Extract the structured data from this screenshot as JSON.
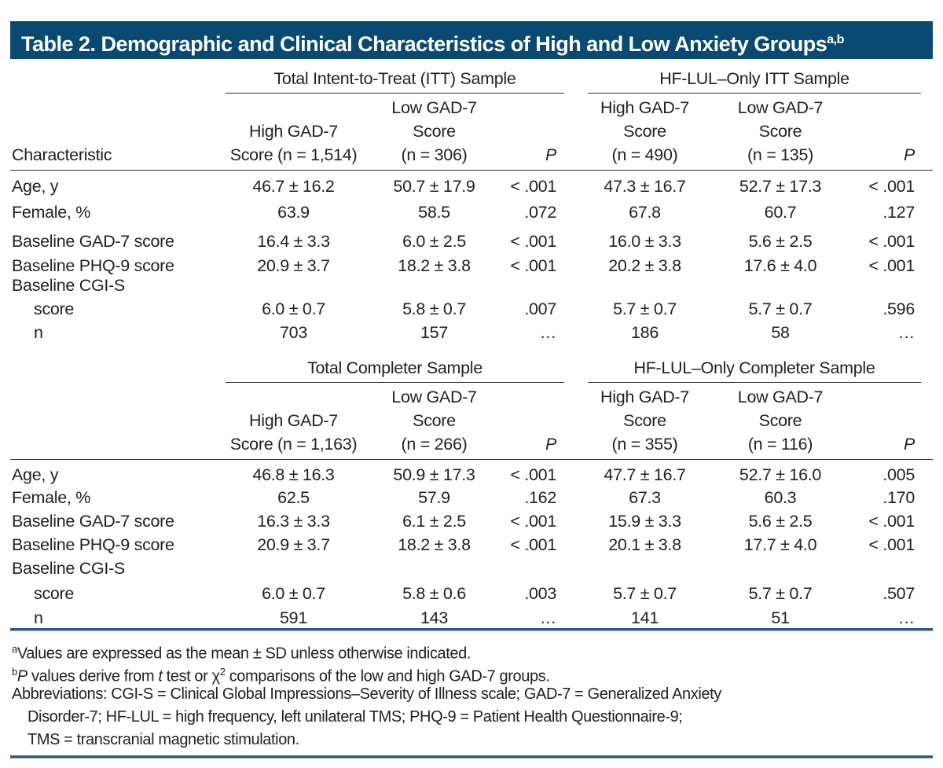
{
  "title": {
    "text": "Table 2. Demographic and Clinical Characteristics of High and Low Anxiety Groups",
    "sup": "a,b"
  },
  "colors": {
    "title_bg": "#0a4a72",
    "rule_blue": "#2a5a8a"
  },
  "sections": [
    {
      "spanners": [
        "Total Intent-to-Treat (ITT) Sample",
        "HF-LUL–Only ITT Sample"
      ],
      "headers": [
        [
          "Characteristic"
        ],
        [
          "High GAD-7",
          "Score (n = 1,514)"
        ],
        [
          "Low GAD-7",
          "Score",
          "(n = 306)"
        ],
        [
          "P"
        ],
        [
          "High GAD-7",
          "Score",
          "(n = 490)"
        ],
        [
          "Low GAD-7",
          "Score",
          "(n = 135)"
        ],
        [
          "P"
        ]
      ],
      "rows": [
        [
          "Age, y",
          "46.7 ± 16.2",
          "50.7 ± 17.9",
          "< .001",
          "47.3 ± 16.7",
          "52.7 ± 17.3",
          "< .001"
        ],
        [
          "Female, %",
          "63.9",
          "58.5",
          ".072",
          "67.8",
          "60.7",
          ".127"
        ],
        [
          "Baseline GAD-7 score",
          "16.4 ± 3.3",
          "6.0 ± 2.5",
          "< .001",
          "16.0 ± 3.3",
          "5.6 ± 2.5",
          "< .001"
        ],
        [
          "Baseline PHQ-9 score",
          "20.9 ± 3.7",
          "18.2 ± 3.8",
          "< .001",
          "20.2 ± 3.8",
          "17.6 ± 4.0",
          "< .001"
        ],
        [
          "Baseline CGI-S",
          "",
          "",
          "",
          "",
          "",
          ""
        ],
        [
          "score",
          "6.0 ± 0.7",
          "5.8 ± 0.7",
          ".007",
          "5.7 ± 0.7",
          "5.7 ± 0.7",
          ".596"
        ],
        [
          "n",
          "703",
          "157",
          "…",
          "186",
          "58",
          "…"
        ]
      ]
    },
    {
      "spanners": [
        "Total Completer Sample",
        "HF-LUL–Only Completer Sample"
      ],
      "headers": [
        [],
        [
          "High GAD-7",
          "Score (n = 1,163)"
        ],
        [
          "Low GAD-7",
          "Score",
          "(n = 266)"
        ],
        [
          "P"
        ],
        [
          "High GAD-7",
          "Score",
          "(n = 355)"
        ],
        [
          "Low GAD-7",
          "Score",
          "(n = 116)"
        ],
        [
          "P"
        ]
      ],
      "rows": [
        [
          "Age, y",
          "46.8 ± 16.3",
          "50.9 ± 17.3",
          "< .001",
          "47.7 ± 16.7",
          "52.7 ± 16.0",
          ".005"
        ],
        [
          "Female, %",
          "62.5",
          "57.9",
          ".162",
          "67.3",
          "60.3",
          ".170"
        ],
        [
          "Baseline GAD-7 score",
          "16.3 ± 3.3",
          "6.1 ± 2.5",
          "< .001",
          "15.9 ± 3.3",
          "5.6 ± 2.5",
          "< .001"
        ],
        [
          "Baseline PHQ-9 score",
          "20.9 ± 3.7",
          "18.2 ± 3.8",
          "< .001",
          "20.1 ± 3.8",
          "17.7 ± 4.0",
          "< .001"
        ],
        [
          "Baseline CGI-S",
          "",
          "",
          "",
          "",
          "",
          ""
        ],
        [
          "score",
          "6.0 ± 0.7",
          "5.8 ± 0.6",
          ".003",
          "5.7 ± 0.7",
          "5.7 ± 0.7",
          ".507"
        ],
        [
          "n",
          "591",
          "143",
          "…",
          "141",
          "51",
          "…"
        ]
      ]
    }
  ],
  "footnotes": {
    "a": {
      "mark": "a",
      "text": "Values are expressed as the mean ± SD unless otherwise indicated."
    },
    "b": {
      "mark": "b",
      "p": "P",
      "text1": " values derive from ",
      "t": "t",
      "text2": " test or χ",
      "sq": "2",
      "text3": " comparisons of the low and high GAD-7 groups."
    },
    "abbrev": [
      "Abbreviations: CGI-S = Clinical Global Impressions–Severity of Illness scale; GAD-7 = Generalized Anxiety",
      "Disorder-7; HF-LUL = high frequency, left unilateral TMS; PHQ-9 = Patient Health Questionnaire-9;",
      "TMS = transcranial magnetic stimulation."
    ]
  }
}
